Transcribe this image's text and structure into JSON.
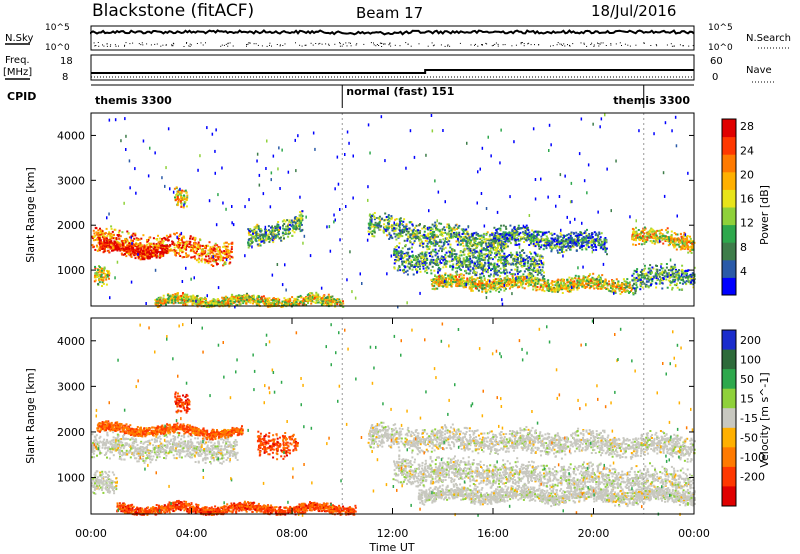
{
  "header": {
    "station": "Blackstone (fitACF)",
    "beam": "Beam 17",
    "date": "18/Jul/2016"
  },
  "strips": {
    "nsky_label": "N.Sky",
    "nsearch_label": "N.Search",
    "nsky_ticks": [
      "10^5",
      "10^0"
    ],
    "nsearch_ticks": [
      "10^5",
      "10^0"
    ],
    "freq_label_1": "Freq.",
    "freq_label_2": "[MHz]",
    "freq_ticks": [
      "18",
      "8"
    ],
    "nave_label": "Nave",
    "nave_ticks": [
      "60",
      "0"
    ],
    "cpid_label": "CPID",
    "cpid_segments": [
      {
        "label": "themis 3300",
        "start_h": 0.0,
        "end_h": 10.0,
        "label_at": "left"
      },
      {
        "label": "normal (fast) 151",
        "start_h": 10.0,
        "end_h": 22.0,
        "label_at": "left"
      },
      {
        "label": "themis 3300",
        "start_h": 22.0,
        "end_h": 24.0,
        "label_at": "right"
      }
    ]
  },
  "chart_data": [
    {
      "type": "heatmap",
      "title": "",
      "ylabel": "Slant Range [km]",
      "ylim": [
        200,
        4500
      ],
      "xlim_h": [
        0,
        24
      ],
      "yticks": [
        1000,
        2000,
        3000,
        4000
      ],
      "colorbar": {
        "label": "Power [dB]",
        "ticks": [
          "4",
          "8",
          "12",
          "16",
          "20",
          "24",
          "28"
        ],
        "range": [
          0,
          30
        ],
        "colors": [
          "#0000ff",
          "#2a5aa8",
          "#3e7d4a",
          "#2ea84c",
          "#8fd13a",
          "#e8e41a",
          "#ffb000",
          "#ff7a00",
          "#ff3800",
          "#e00000"
        ]
      },
      "bands": [
        {
          "t0": 0.0,
          "t1": 5.6,
          "r0": 1700,
          "r1": 1400,
          "w": 300,
          "level": 0.75
        },
        {
          "t0": 0.3,
          "t1": 3.0,
          "r0": 1500,
          "r1": 1450,
          "w": 160,
          "level": 0.95
        },
        {
          "t0": 3.3,
          "t1": 3.8,
          "r0": 2600,
          "r1": 2600,
          "w": 250,
          "level": 0.6
        },
        {
          "t0": 6.2,
          "t1": 8.4,
          "r0": 1700,
          "r1": 2100,
          "w": 280,
          "level": 0.35
        },
        {
          "t0": 0.1,
          "t1": 0.7,
          "r0": 900,
          "r1": 800,
          "w": 250,
          "level": 0.55
        },
        {
          "t0": 11.0,
          "t1": 16.5,
          "r0": 2000,
          "r1": 1600,
          "w": 300,
          "level": 0.35
        },
        {
          "t0": 12.0,
          "t1": 18.0,
          "r0": 1300,
          "r1": 1100,
          "w": 350,
          "level": 0.3
        },
        {
          "t0": 13.5,
          "t1": 21.5,
          "r0": 750,
          "r1": 700,
          "w": 180,
          "level": 0.55
        },
        {
          "t0": 16.0,
          "t1": 20.5,
          "r0": 1800,
          "r1": 1600,
          "w": 250,
          "level": 0.25
        },
        {
          "t0": 21.5,
          "t1": 24.0,
          "r0": 1800,
          "r1": 1650,
          "w": 220,
          "level": 0.6
        },
        {
          "t0": 21.5,
          "t1": 24.0,
          "r0": 800,
          "r1": 900,
          "w": 300,
          "level": 0.3
        },
        {
          "t0": 2.5,
          "t1": 10.0,
          "r0": 330,
          "r1": 330,
          "w": 140,
          "level": 0.55
        }
      ]
    },
    {
      "type": "heatmap",
      "title": "",
      "xlabel": "Time UT",
      "ylabel": "Slant Range [km]",
      "ylim": [
        200,
        4500
      ],
      "xlim_h": [
        0,
        24
      ],
      "yticks": [
        1000,
        2000,
        3000,
        4000
      ],
      "xticks": [
        "00:00",
        "04:00",
        "08:00",
        "12:00",
        "16:00",
        "20:00",
        "00:00"
      ],
      "colorbar": {
        "label": "Velocity [m s^-1]",
        "ticks": [
          "200",
          "100",
          "50",
          "15",
          "-15",
          "-50",
          "-100",
          "-200"
        ],
        "colors": [
          "#1a2ccc",
          "#2e6b3a",
          "#2ea84c",
          "#8fd13a",
          "#c8c8c0",
          "#ffb000",
          "#ff7a00",
          "#ff3800",
          "#e00000"
        ]
      },
      "bands": [
        {
          "t0": 0.0,
          "t1": 5.8,
          "r0": 1700,
          "r1": 1650,
          "w": 320,
          "level": 0.0
        },
        {
          "t0": 3.3,
          "t1": 3.9,
          "r0": 2600,
          "r1": 2600,
          "w": 250,
          "level": -0.8
        },
        {
          "t0": 6.6,
          "t1": 8.2,
          "r0": 1750,
          "r1": 1800,
          "w": 300,
          "level": -0.7
        },
        {
          "t0": 0.2,
          "t1": 6.0,
          "r0": 2100,
          "r1": 2000,
          "w": 120,
          "level": -0.6
        },
        {
          "t0": 0.0,
          "t1": 1.0,
          "r0": 900,
          "r1": 800,
          "w": 300,
          "level": 0.0
        },
        {
          "t0": 11.0,
          "t1": 24.0,
          "r0": 1900,
          "r1": 1700,
          "w": 300,
          "level": 0.0
        },
        {
          "t0": 12.0,
          "t1": 24.0,
          "r0": 1200,
          "r1": 900,
          "w": 350,
          "level": 0.0
        },
        {
          "t0": 13.0,
          "t1": 24.0,
          "r0": 650,
          "r1": 600,
          "w": 180,
          "level": 0.0
        },
        {
          "t0": 1.0,
          "t1": 10.5,
          "r0": 330,
          "r1": 330,
          "w": 130,
          "level": -0.7
        }
      ]
    }
  ]
}
